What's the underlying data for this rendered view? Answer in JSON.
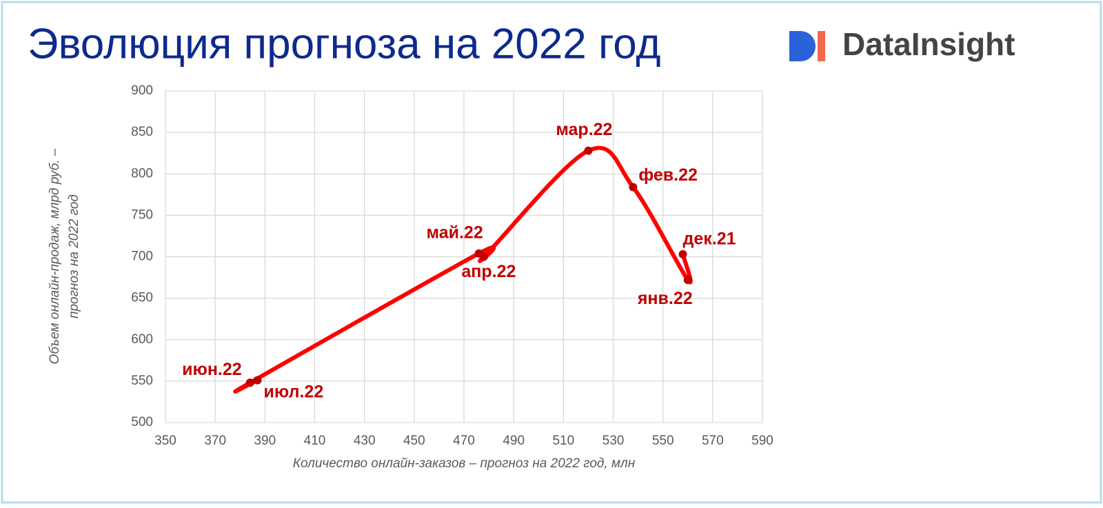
{
  "chart_data": {
    "type": "scatter",
    "title": "Эволюция прогноза на 2022 год",
    "logo": "DataInsight",
    "xlabel": "Количество онлайн-заказов – прогноз на 2022 год, млн",
    "ylabel": [
      "Объем онлайн-продаж, млрд руб. –",
      "прогноз на 2022 год"
    ],
    "labels": [
      "дек.21",
      "янв.22",
      "фев.22",
      "мар.22",
      "апр.22",
      "май.22",
      "июн.22",
      "июл.22"
    ],
    "x": [
      558,
      560,
      538,
      520,
      478,
      476,
      384,
      387
    ],
    "values": [
      703,
      672,
      784,
      828,
      700,
      704,
      548,
      551
    ],
    "color": "#ff0000",
    "marker_color": "#c00000",
    "smooth": true,
    "grid": true,
    "xlim": [
      350,
      590
    ],
    "xticks": [
      350,
      370,
      390,
      410,
      430,
      450,
      470,
      490,
      510,
      530,
      550,
      570,
      590
    ],
    "ylim": [
      500,
      900
    ],
    "yticks": [
      500,
      550,
      600,
      650,
      700,
      750,
      800,
      850,
      900
    ]
  }
}
